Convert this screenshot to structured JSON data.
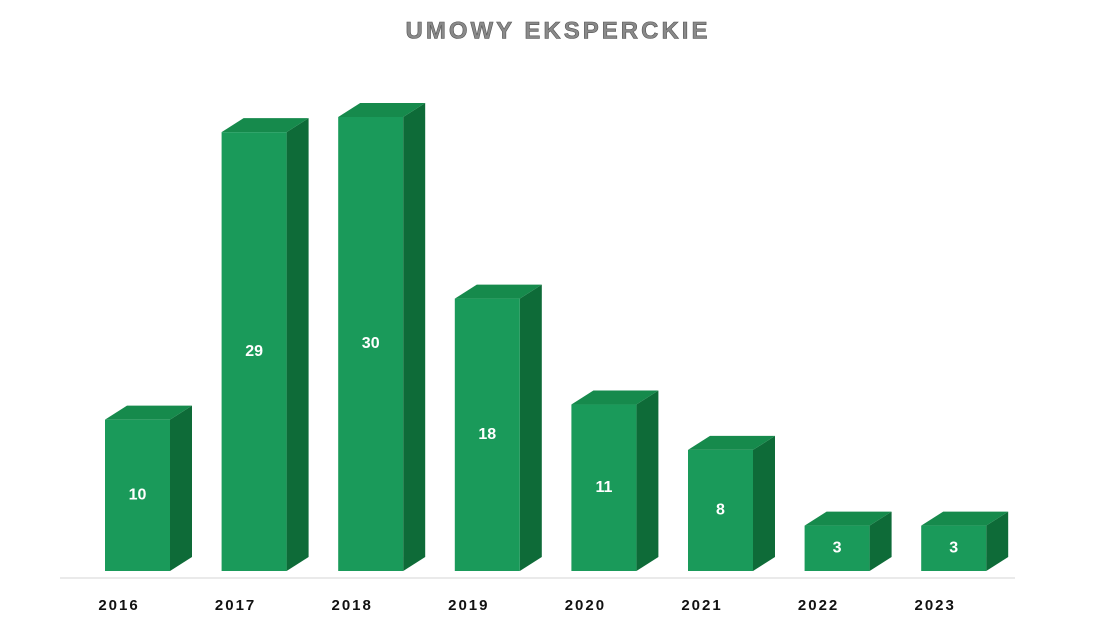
{
  "chart_data": {
    "type": "bar3d",
    "title": "UMOWY EKSPERCKIE",
    "categories": [
      "2016",
      "2017",
      "2018",
      "2019",
      "2020",
      "2021",
      "2022",
      "2023"
    ],
    "values": [
      10,
      29,
      30,
      18,
      11,
      8,
      3,
      3
    ],
    "color": "#1a9a5a"
  }
}
